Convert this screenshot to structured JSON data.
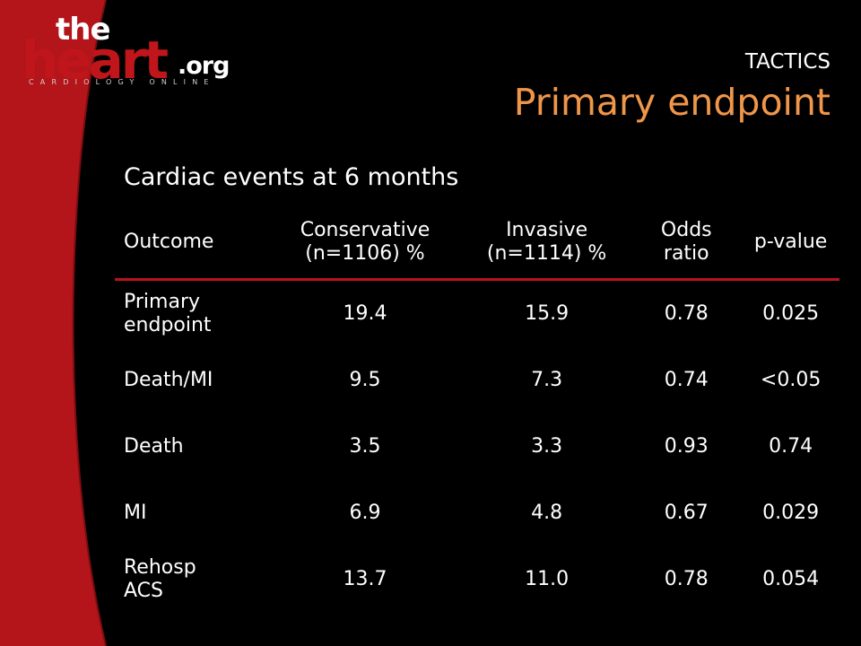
{
  "logo": {
    "the": "the",
    "heart": "heart",
    "org": ".org",
    "tagline": "CARDIOLOGY ONLINE"
  },
  "colors": {
    "background": "#000000",
    "brand_red": "#c0161b",
    "title_orange": "#f0964a",
    "rule_red": "#b8141a",
    "text": "#ffffff"
  },
  "header": {
    "study": "TACTICS",
    "title": "Primary endpoint"
  },
  "subtitle": "Cardiac events at 6 months",
  "table": {
    "headers": {
      "outcome": "Outcome",
      "conservative_line1": "Conservative",
      "conservative_line2": "(n=1106) %",
      "invasive_line1": "Invasive",
      "invasive_line2": "(n=1114) %",
      "odds_line1": "Odds",
      "odds_line2": "ratio",
      "pvalue": "p-value"
    },
    "rows": [
      {
        "outcome_line1": "Primary",
        "outcome_line2": "endpoint",
        "conservative": "19.4",
        "invasive": "15.9",
        "odds_ratio": "0.78",
        "p_value": "0.025"
      },
      {
        "outcome_line1": "Death/MI",
        "outcome_line2": "",
        "conservative": "9.5",
        "invasive": "7.3",
        "odds_ratio": "0.74",
        "p_value": "<0.05"
      },
      {
        "outcome_line1": "Death",
        "outcome_line2": "",
        "conservative": "3.5",
        "invasive": "3.3",
        "odds_ratio": "0.93",
        "p_value": "0.74"
      },
      {
        "outcome_line1": "MI",
        "outcome_line2": "",
        "conservative": "6.9",
        "invasive": "4.8",
        "odds_ratio": "0.67",
        "p_value": "0.029"
      },
      {
        "outcome_line1": "Rehosp",
        "outcome_line2": "ACS",
        "conservative": "13.7",
        "invasive": "11.0",
        "odds_ratio": "0.78",
        "p_value": "0.054"
      }
    ]
  }
}
